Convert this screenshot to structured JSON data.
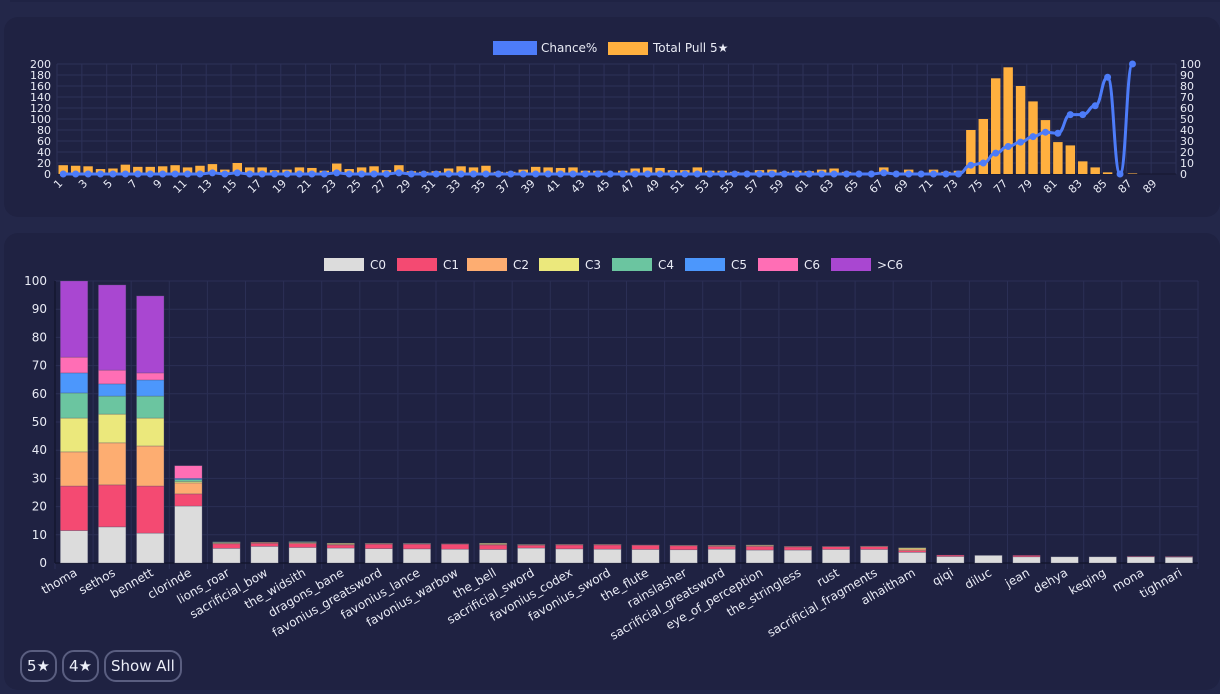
{
  "chart_data": [
    {
      "type": "bar+line",
      "title": "",
      "legend": [
        "Chance%",
        "Total Pull 5★"
      ],
      "legend_position": "top-center",
      "x": [
        1,
        2,
        3,
        4,
        5,
        6,
        7,
        8,
        9,
        10,
        11,
        12,
        13,
        14,
        15,
        16,
        17,
        18,
        19,
        20,
        21,
        22,
        23,
        24,
        25,
        26,
        27,
        28,
        29,
        30,
        31,
        32,
        33,
        34,
        35,
        36,
        37,
        38,
        39,
        40,
        41,
        42,
        43,
        44,
        45,
        46,
        47,
        48,
        49,
        50,
        51,
        52,
        53,
        54,
        55,
        56,
        57,
        58,
        59,
        60,
        61,
        62,
        63,
        64,
        65,
        66,
        67,
        68,
        69,
        70,
        71,
        72,
        73,
        74,
        75,
        76,
        77,
        78,
        79,
        80,
        81,
        82,
        83,
        84,
        85,
        86,
        87,
        88,
        89,
        90
      ],
      "x_tick_labels": [
        "1",
        "3",
        "5",
        "7",
        "9",
        "11",
        "13",
        "15",
        "17",
        "19",
        "21",
        "23",
        "25",
        "27",
        "29",
        "31",
        "33",
        "35",
        "37",
        "39",
        "41",
        "43",
        "45",
        "47",
        "49",
        "51",
        "53",
        "55",
        "57",
        "59",
        "61",
        "63",
        "65",
        "67",
        "69",
        "71",
        "73",
        "75",
        "77",
        "79",
        "81",
        "83",
        "85",
        "87",
        "89"
      ],
      "series": [
        {
          "name": "Total Pull 5★",
          "type": "bar",
          "axis": "left",
          "color": "#ffb03f",
          "values": [
            16,
            15,
            14,
            9,
            10,
            17,
            13,
            13,
            14,
            16,
            12,
            15,
            18,
            8,
            20,
            12,
            12,
            7,
            8,
            12,
            11,
            6,
            19,
            9,
            12,
            14,
            7,
            16,
            5,
            4,
            5,
            10,
            14,
            12,
            15,
            4,
            4,
            8,
            13,
            12,
            11,
            12,
            6,
            6,
            0,
            6,
            10,
            12,
            11,
            7,
            7,
            12,
            6,
            6,
            4,
            3,
            7,
            8,
            4,
            6,
            5,
            8,
            10,
            4,
            0,
            0,
            12,
            0,
            8,
            0,
            8,
            4,
            6,
            80,
            100,
            174,
            194,
            160,
            132,
            98,
            58,
            52,
            23,
            12,
            3,
            0,
            1,
            0,
            0,
            0
          ]
        },
        {
          "name": "Chance%",
          "type": "line",
          "axis": "right",
          "color": "#4d7cf9",
          "values": [
            0,
            0,
            0,
            0,
            0,
            0,
            0,
            0,
            0,
            0,
            0,
            0,
            1,
            0,
            1,
            0,
            0,
            0,
            0,
            0,
            0,
            0,
            1,
            0,
            0,
            0,
            0,
            1,
            0,
            0,
            0,
            0,
            0,
            0,
            0,
            0,
            0,
            0,
            0,
            0,
            0,
            0,
            0,
            0,
            0,
            0,
            0,
            0,
            0,
            0,
            0,
            0,
            0,
            0,
            0,
            0,
            0,
            0,
            0,
            0,
            0,
            0,
            0,
            0,
            0,
            0,
            1,
            0,
            0,
            0,
            0,
            0,
            0,
            8,
            10,
            19,
            25,
            29,
            34,
            38,
            37,
            54,
            54,
            62,
            88,
            0,
            100,
            null,
            null,
            null
          ]
        }
      ],
      "y_left": {
        "ticks": [
          "0",
          "20",
          "40",
          "60",
          "80",
          "100",
          "120",
          "140",
          "160",
          "180",
          "200"
        ],
        "range": [
          0,
          200
        ]
      },
      "y_right": {
        "ticks": [
          "0",
          "10",
          "20",
          "30",
          "40",
          "50",
          "60",
          "70",
          "80",
          "90",
          "100"
        ],
        "range": [
          0,
          100
        ]
      },
      "grid": true
    },
    {
      "type": "bar",
      "stacked": true,
      "title": "",
      "legend_position": "top-center",
      "categories": [
        "thoma",
        "sethos",
        "bennett",
        "clorinde",
        "lions_roar",
        "sacrificial_bow",
        "the_widsith",
        "dragons_bane",
        "favonius_greatsword",
        "favonius_lance",
        "favonius_warbow",
        "the_bell",
        "sacrificial_sword",
        "favonius_codex",
        "favonius_sword",
        "the_flute",
        "rainslasher",
        "sacrificial_greatsword",
        "eye_of_perception",
        "the_stringless",
        "rust",
        "sacrificial_fragments",
        "alhaitham",
        "qiqi",
        "diluc",
        "jean",
        "dehya",
        "keqing",
        "mona",
        "tighnari"
      ],
      "series": [
        {
          "name": "C0",
          "color": "#dcdcdc",
          "values": [
            11.5,
            12.8,
            10.6,
            20.2,
            5.2,
            5.9,
            5.5,
            5.3,
            5.1,
            5.0,
            4.9,
            4.8,
            5.3,
            5.0,
            4.9,
            4.8,
            4.7,
            4.9,
            4.6,
            4.6,
            4.8,
            4.8,
            3.8,
            2.3,
            2.7,
            2.2,
            2.2,
            2.2,
            2.2,
            2.1
          ]
        },
        {
          "name": "C1",
          "color": "#f44a72",
          "values": [
            15.8,
            14.9,
            16.7,
            4.3,
            1.6,
            1.1,
            1.4,
            1.1,
            1.6,
            1.7,
            1.8,
            1.6,
            1.0,
            1.4,
            1.5,
            1.5,
            1.4,
            1.0,
            1.3,
            1.1,
            1.0,
            1.0,
            0.6,
            0.5,
            0,
            0.5,
            0,
            0,
            0.2,
            0.2
          ]
        },
        {
          "name": "C2",
          "color": "#fdad71",
          "values": [
            12.1,
            14.9,
            14.2,
            3.9,
            0.3,
            0.3,
            0.3,
            0.3,
            0.2,
            0.2,
            0.1,
            0.3,
            0.2,
            0.2,
            0.2,
            0.1,
            0.2,
            0.3,
            0.3,
            0.2,
            0.1,
            0.2,
            0.6,
            0,
            0,
            0,
            0,
            0,
            0,
            0
          ]
        },
        {
          "name": "C3",
          "color": "#ebe87c",
          "values": [
            12.0,
            10.2,
            9.9,
            0.5,
            0.2,
            0,
            0.2,
            0.3,
            0.1,
            0,
            0,
            0.3,
            0.1,
            0,
            0,
            0,
            0,
            0.1,
            0.2,
            0,
            0,
            0,
            0.4,
            0,
            0,
            0,
            0,
            0,
            0,
            0
          ]
        },
        {
          "name": "C4",
          "color": "#6bc5a0",
          "values": [
            8.9,
            6.4,
            7.8,
            0.7,
            0.2,
            0,
            0.2,
            0,
            0,
            0.1,
            0,
            0,
            0,
            0,
            0,
            0,
            0,
            0,
            0,
            0,
            0,
            0,
            0,
            0,
            0,
            0,
            0,
            0,
            0,
            0
          ]
        },
        {
          "name": "C5",
          "color": "#4c97fc",
          "values": [
            7.1,
            4.3,
            5.7,
            0.4,
            0,
            0,
            0,
            0,
            0,
            0,
            0,
            0,
            0,
            0,
            0,
            0,
            0,
            0,
            0,
            0,
            0,
            0,
            0,
            0,
            0,
            0,
            0,
            0,
            0,
            0
          ]
        },
        {
          "name": "C6",
          "color": "#ff6eb5",
          "values": [
            5.6,
            4.9,
            2.5,
            4.5,
            0,
            0,
            0,
            0,
            0,
            0,
            0,
            0,
            0,
            0,
            0,
            0,
            0,
            0,
            0,
            0,
            0,
            0,
            0,
            0,
            0,
            0,
            0,
            0,
            0,
            0
          ]
        },
        {
          "name": ">C6",
          "color": "#a947d1",
          "values": [
            27.0,
            30.2,
            27.3,
            0,
            0,
            0,
            0,
            0,
            0,
            0,
            0,
            0,
            0,
            0,
            0,
            0,
            0,
            0,
            0,
            0,
            0,
            0,
            0,
            0,
            0,
            0,
            0,
            0,
            0,
            0
          ]
        }
      ],
      "y": {
        "ticks": [
          "0",
          "10",
          "20",
          "30",
          "40",
          "50",
          "60",
          "70",
          "80",
          "90",
          "100"
        ],
        "range": [
          0,
          100
        ]
      },
      "legend": [
        "C0",
        "C1",
        "C2",
        "C3",
        "C4",
        "C5",
        "C6",
        ">C6"
      ],
      "grid": true
    }
  ],
  "filters": {
    "five_star": "5★",
    "four_star": "4★",
    "show_all": "Show All"
  }
}
